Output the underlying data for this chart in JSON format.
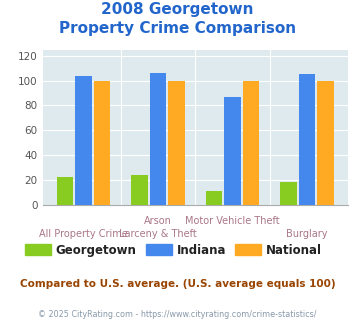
{
  "title_line1": "2008 Georgetown",
  "title_line2": "Property Crime Comparison",
  "cat_labels_row1": [
    "",
    "Arson",
    "Motor Vehicle Theft",
    ""
  ],
  "cat_labels_row2": [
    "All Property Crime",
    "Larceny & Theft",
    "",
    "Burglary"
  ],
  "georgetown": [
    22,
    24,
    11,
    18
  ],
  "indiana": [
    104,
    106,
    87,
    105
  ],
  "national": [
    100,
    100,
    100,
    100
  ],
  "color_georgetown": "#88cc22",
  "color_indiana": "#4488ee",
  "color_national": "#ffaa22",
  "ylabel_ticks": [
    0,
    20,
    40,
    60,
    80,
    100,
    120
  ],
  "ylim": [
    0,
    125
  ],
  "bg_color": "#deeaee",
  "footnote": "Compared to U.S. average. (U.S. average equals 100)",
  "copyright": "© 2025 CityRating.com - https://www.cityrating.com/crime-statistics/",
  "title_color": "#2266cc",
  "label_color": "#aa7788",
  "footnote_color": "#994400",
  "copyright_color": "#8899aa"
}
